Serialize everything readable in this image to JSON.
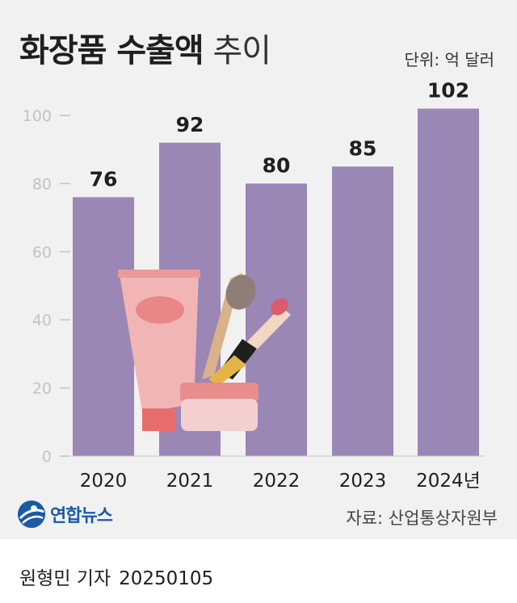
{
  "header": {
    "title_bold": "화장품 수출액",
    "title_light": "추이",
    "unit": "단위: 억 달러"
  },
  "chart_data": {
    "type": "bar",
    "title": "화장품 수출액 추이",
    "unit": "단위: 억 달러",
    "categories": [
      "2020",
      "2021",
      "2022",
      "2023",
      "2024년"
    ],
    "values": [
      76,
      92,
      80,
      85,
      102
    ],
    "value_labels": [
      "76",
      "92",
      "80",
      "85",
      "102"
    ],
    "y_ticks": [
      "0",
      "20",
      "40",
      "60",
      "80",
      "100"
    ],
    "ylim": [
      0,
      110
    ],
    "grid": false,
    "bar_color": "#9a87b5",
    "background_color": "#f1f1f1"
  },
  "footer": {
    "logo_text": "연합뉴스",
    "source": "자료: 산업통상자원부",
    "author": "원형민 기자",
    "date": "20250105"
  },
  "colors": {
    "bar": "#9a87b5",
    "logo": "#1b5aa6",
    "tick": "#c0c0c0"
  }
}
